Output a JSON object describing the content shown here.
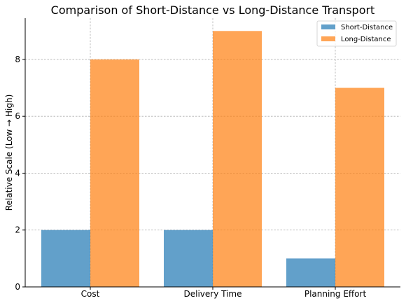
{
  "chart_data": {
    "type": "bar",
    "title": "Comparison of Short-Distance vs Long-Distance Transport",
    "xlabel": "",
    "ylabel": "Relative Scale (Low → High)",
    "categories": [
      "Cost",
      "Delivery Time",
      "Planning Effort"
    ],
    "series": [
      {
        "name": "Short-Distance",
        "values": [
          2,
          2,
          1
        ],
        "color": "#1f77b4"
      },
      {
        "name": "Long-Distance",
        "values": [
          8,
          9,
          7
        ],
        "color": "#ff7f0e"
      }
    ],
    "ylim": [
      0,
      9.45
    ],
    "yticks": [
      "0",
      "2",
      "4",
      "6",
      "8"
    ],
    "grid": true,
    "legend_position": "top-right"
  }
}
